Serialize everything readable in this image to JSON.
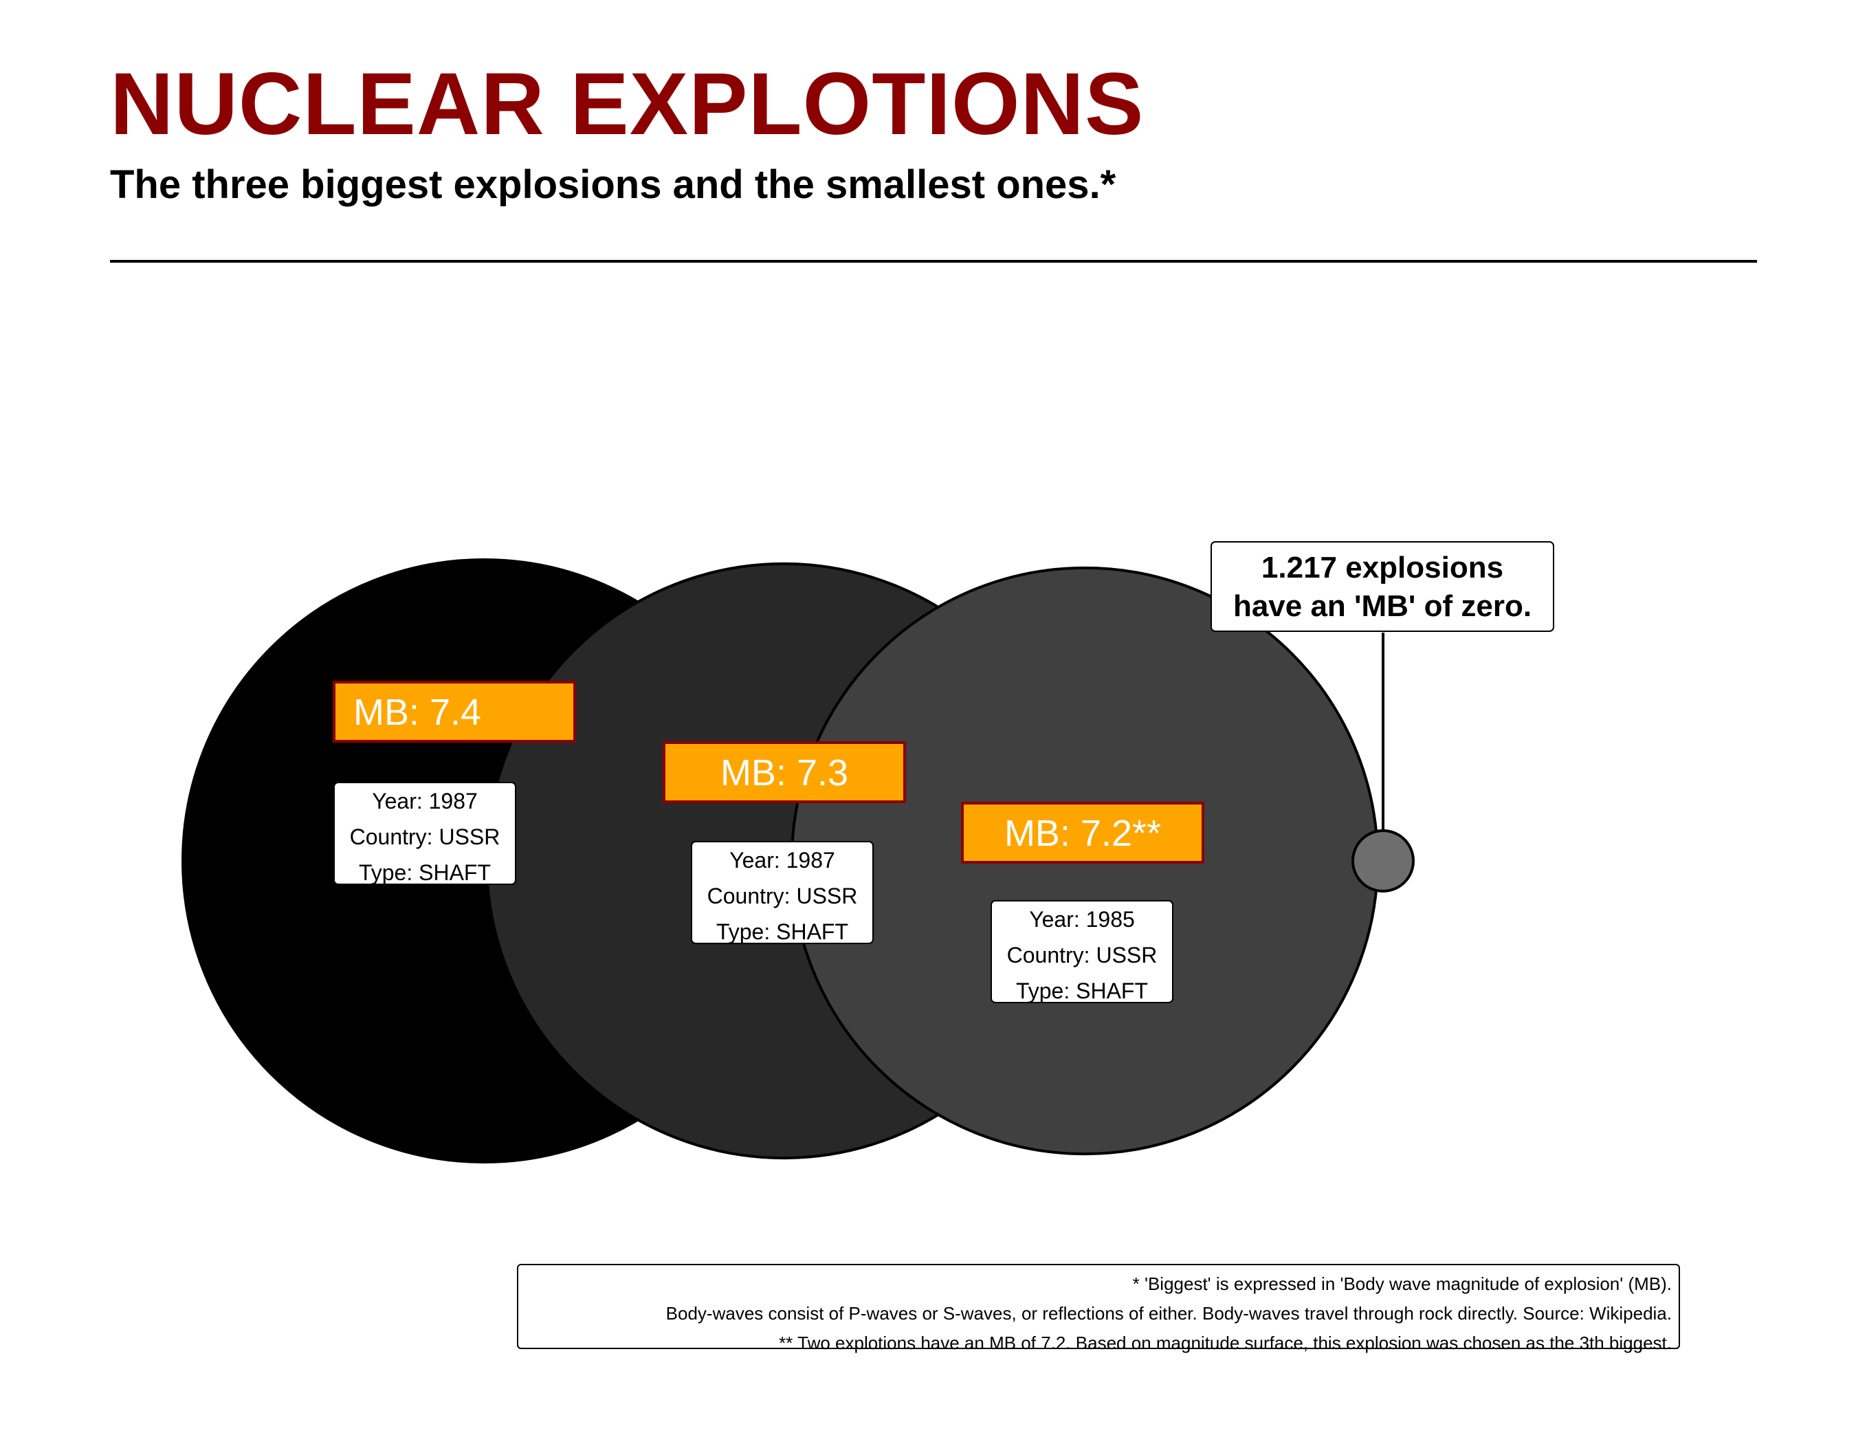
{
  "title": "NUCLEAR EXPLOTIONS",
  "subtitle": "The three biggest explosions and the smallest ones.*",
  "colors": {
    "title": "#8b0000",
    "mb_label_fill": "#ffa500",
    "mb_label_border": "#8b0000"
  },
  "chart_data": {
    "type": "bubble",
    "value_name": "MB",
    "series": [
      {
        "mb": 7.4,
        "mb_label": "MB: 7.4",
        "year": 1987,
        "country": "USSR",
        "type": "SHAFT",
        "info": [
          "Year: 1987",
          "Country: USSR",
          "Type: SHAFT"
        ],
        "fill": "#000000"
      },
      {
        "mb": 7.3,
        "mb_label": "MB: 7.3",
        "year": 1987,
        "country": "USSR",
        "type": "SHAFT",
        "info": [
          "Year: 1987",
          "Country: USSR",
          "Type: SHAFT"
        ],
        "fill": "#282828"
      },
      {
        "mb": 7.2,
        "mb_label": "MB: 7.2**",
        "year": 1985,
        "country": "USSR",
        "type": "SHAFT",
        "info": [
          "Year: 1985",
          "Country: USSR",
          "Type: SHAFT"
        ],
        "fill": "#404040"
      }
    ],
    "zero": {
      "count": 1217,
      "fill": "#6e6e6e",
      "annotation": [
        "1.217 explosions",
        "have an 'MB' of zero."
      ]
    }
  },
  "footnotes": [
    "* 'Biggest' is expressed in 'Body wave magnitude of explosion' (MB).",
    "Body-waves consist of P-waves or S-waves, or reflections of either. Body-waves travel through rock directly. Source: Wikipedia.",
    "** Two explotions have an MB of 7.2. Based on magnitude surface, this explosion was chosen as the 3th biggest."
  ]
}
